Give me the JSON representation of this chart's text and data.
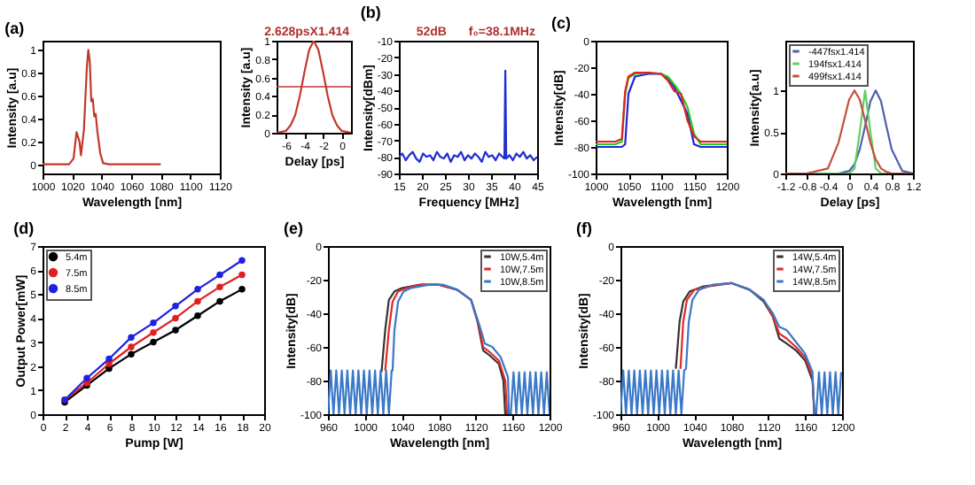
{
  "chart_data": [
    {
      "type": "line",
      "title": "(a)",
      "xlabel": "Wavelength [nm]",
      "ylabel": "Intensity [a.u]",
      "xlim": [
        1000,
        1120
      ],
      "xticks": [
        1000,
        1020,
        1040,
        1060,
        1080,
        1100,
        1120
      ],
      "ylim": [
        -0.08,
        1.08
      ],
      "yticks": [
        0,
        0.2,
        0.4,
        0.6,
        0.8,
        1
      ],
      "x": [
        1000,
        1018,
        1021,
        1023,
        1025,
        1026,
        1028,
        1030,
        1031,
        1032,
        1033,
        1034,
        1035,
        1036,
        1037,
        1039,
        1041,
        1045,
        1080
      ],
      "series": [
        {
          "color": "#c0392b",
          "values": [
            0,
            0,
            0.05,
            0.28,
            0.2,
            0.08,
            0.3,
            0.85,
            1,
            0.9,
            0.55,
            0.57,
            0.42,
            0.44,
            0.3,
            0.1,
            0.01,
            0,
            0
          ]
        }
      ]
    },
    {
      "type": "line",
      "xlabel": "Delay [ps]",
      "ylabel": "Intensity [a.u]",
      "xlim": [
        -7,
        1
      ],
      "xticks": [
        -6,
        -4,
        -2,
        0
      ],
      "ylim": [
        0,
        1
      ],
      "yticks": [
        0,
        0.2,
        0.4,
        0.6,
        0.8,
        1
      ],
      "annotations": [
        "2.628psX1.414"
      ],
      "ref_lines": [
        {
          "axis": "y",
          "value": 0.5,
          "color": "#c0392b"
        }
      ],
      "x": [
        -7,
        -6.5,
        -6,
        -5.5,
        -5,
        -4.5,
        -4,
        -3.5,
        -3,
        -2.5,
        -2,
        -1.5,
        -1,
        -0.5,
        0,
        1
      ],
      "series": [
        {
          "color": "#c0392b",
          "values": [
            0,
            0.01,
            0.02,
            0.08,
            0.19,
            0.4,
            0.66,
            0.9,
            1,
            0.9,
            0.66,
            0.4,
            0.19,
            0.08,
            0.02,
            0
          ]
        }
      ]
    },
    {
      "type": "line",
      "title": "(b)",
      "xlabel": "Frequency [MHz]",
      "ylabel": "Intensity[dBm]",
      "xlim": [
        15,
        45
      ],
      "xticks": [
        15,
        20,
        25,
        30,
        35,
        40,
        45
      ],
      "ylim": [
        -90,
        -10
      ],
      "yticks": [
        -90,
        -80,
        -70,
        -60,
        -50,
        -40,
        -30,
        -20,
        -10
      ],
      "annotations": [
        "f₀=38.1MHz",
        "52dB"
      ],
      "x": [
        15,
        15.75,
        16.5,
        17.25,
        18,
        18.75,
        19.5,
        20.25,
        21,
        21.75,
        22.5,
        23.25,
        24,
        24.75,
        25.5,
        26.25,
        27,
        27.75,
        28.5,
        29.25,
        30,
        30.75,
        31.5,
        32.25,
        33,
        33.75,
        34.5,
        35.25,
        36,
        36.75,
        37.5,
        37.9,
        38.1,
        38.3,
        39,
        39.75,
        40.5,
        41.25,
        42,
        42.75,
        43.5,
        44.25,
        45
      ],
      "series": [
        {
          "color": "#1f2fd0",
          "values": [
            -80,
            -78,
            -82,
            -79,
            -77,
            -81,
            -83,
            -78,
            -80,
            -79,
            -82,
            -77,
            -80,
            -81,
            -78,
            -83,
            -79,
            -80,
            -77,
            -82,
            -79,
            -81,
            -78,
            -80,
            -83,
            -77,
            -80,
            -79,
            -82,
            -78,
            -80,
            -81,
            -28,
            -81,
            -79,
            -82,
            -78,
            -80,
            -77,
            -81,
            -79,
            -82,
            -80
          ]
        }
      ]
    },
    {
      "type": "line",
      "title": "(c)",
      "xlabel": "Wavelength [nm]",
      "ylabel": "Intensity[dB]",
      "xlim": [
        1000,
        1200
      ],
      "xticks": [
        1000,
        1050,
        1100,
        1150,
        1200
      ],
      "ylim": [
        -100,
        0
      ],
      "yticks": [
        0,
        -20,
        -40,
        -60,
        -80,
        -100
      ],
      "x": [
        1000,
        1010,
        1020,
        1030,
        1040,
        1045,
        1050,
        1060,
        1080,
        1100,
        1110,
        1120,
        1130,
        1140,
        1150,
        1160,
        1170,
        1180,
        1190,
        1200
      ],
      "series": [
        {
          "color": "#2323d8",
          "values": [
            -80,
            -80,
            -80,
            -80,
            -80,
            -78,
            -40,
            -27,
            -25,
            -25,
            -28,
            -35,
            -45,
            -55,
            -78,
            -80,
            -80,
            -80,
            -80,
            -80
          ]
        },
        {
          "color": "#22cc22",
          "values": [
            -78,
            -78,
            -78,
            -78,
            -76,
            -40,
            -28,
            -25,
            -24,
            -25,
            -27,
            -33,
            -40,
            -50,
            -70,
            -78,
            -78,
            -78,
            -78,
            -78
          ]
        },
        {
          "color": "#e02020",
          "values": [
            -76,
            -76,
            -76,
            -76,
            -74,
            -38,
            -27,
            -24,
            -24,
            -25,
            -30,
            -38,
            -40,
            -60,
            -72,
            -76,
            -76,
            -76,
            -76,
            -76
          ]
        }
      ]
    },
    {
      "type": "line",
      "xlabel": "Delay [ps]",
      "ylabel": "Intensity[a.u]",
      "xlim": [
        -1.2,
        1.2
      ],
      "xticks": [
        -1.2,
        -0.8,
        -0.4,
        0,
        0.4,
        0.8,
        1.2
      ],
      "ylim": [
        0,
        1.6
      ],
      "yticks": [
        0,
        0.5,
        1
      ],
      "legend": "top left",
      "x": [
        -1.2,
        -0.8,
        -0.4,
        -0.2,
        0,
        0.1,
        0.2,
        0.3,
        0.4,
        0.5,
        0.6,
        0.7,
        0.8,
        1,
        1.2
      ],
      "series": [
        {
          "name": "-447fsx1.414",
          "color": "#5060b0",
          "values": [
            null,
            null,
            0,
            0,
            0.03,
            0.11,
            0.29,
            0.57,
            0.87,
            1,
            0.87,
            0.57,
            0.29,
            0.03,
            0
          ]
        },
        {
          "name": "194fsx1.414",
          "color": "#60d060",
          "values": [
            0,
            0,
            0,
            0,
            0,
            0.06,
            0.5,
            1,
            0.5,
            0.06,
            0,
            0,
            0,
            0,
            0
          ]
        },
        {
          "name": "499fsx1.414",
          "color": "#c05040",
          "values": [
            0,
            0,
            0.06,
            0.37,
            0.89,
            1,
            0.89,
            0.64,
            0.37,
            0.17,
            0.06,
            0.02,
            0,
            0,
            0
          ]
        }
      ]
    },
    {
      "type": "line",
      "title": "(d)",
      "xlabel": "Pump [W]",
      "ylabel": "Output Power[mW]",
      "xlim": [
        0,
        20
      ],
      "xticks": [
        0,
        2,
        4,
        6,
        8,
        10,
        12,
        14,
        16,
        18,
        20
      ],
      "ylim": [
        0,
        7
      ],
      "yticks": [
        0,
        1,
        2,
        3,
        4,
        5,
        6,
        7
      ],
      "legend": "top left",
      "marker": "circle",
      "x": [
        2,
        4,
        6,
        8,
        10,
        12,
        14,
        16,
        18
      ],
      "series": [
        {
          "name": "5.4m",
          "color": "#000000",
          "values": [
            0.5,
            1.2,
            1.9,
            2.5,
            3.0,
            3.5,
            4.1,
            4.7,
            5.2
          ]
        },
        {
          "name": "7.5m",
          "color": "#e02020",
          "values": [
            0.6,
            1.3,
            2.1,
            2.8,
            3.4,
            4.0,
            4.7,
            5.3,
            5.8
          ]
        },
        {
          "name": "8.5m",
          "color": "#2020e0",
          "values": [
            0.6,
            1.5,
            2.3,
            3.2,
            3.8,
            4.5,
            5.2,
            5.8,
            6.4
          ]
        }
      ]
    },
    {
      "type": "line",
      "title": "(e)",
      "xlabel": "Wavelength [nm]",
      "ylabel": "Intensity[dB]",
      "xlim": [
        960,
        1200
      ],
      "xticks": [
        960,
        1000,
        1040,
        1080,
        1120,
        1160,
        1200
      ],
      "ylim": [
        -100,
        0
      ],
      "yticks": [
        -100,
        -80,
        -60,
        -40,
        -20,
        0
      ],
      "legend": "top right",
      "series": [
        {
          "name": "10W,5.4m",
          "color": "#333333",
          "x": [
            1018,
            1022,
            1026,
            1032,
            1040,
            1060,
            1080,
            1100,
            1115,
            1122,
            1128,
            1135,
            1145,
            1150,
            1152
          ],
          "values": [
            -75,
            -50,
            -32,
            -27,
            -25,
            -23,
            -23,
            -26,
            -32,
            -45,
            -62,
            -65,
            -70,
            -80,
            -100
          ]
        },
        {
          "name": "10W,7.5m",
          "color": "#e02828",
          "x": [
            1022,
            1026,
            1030,
            1036,
            1045,
            1060,
            1080,
            1100,
            1115,
            1123,
            1128,
            1135,
            1145,
            1152,
            1154
          ],
          "values": [
            -74,
            -50,
            -33,
            -27,
            -25,
            -23,
            -23,
            -26,
            -32,
            -46,
            -60,
            -63,
            -68,
            -80,
            -100
          ]
        },
        {
          "name": "10W,8.5m",
          "color": "#3a78c8",
          "x": [
            960,
            963,
            966,
            969,
            972,
            975,
            978,
            981,
            984,
            987,
            990,
            993,
            996,
            999,
            1002,
            1005,
            1008,
            1011,
            1014,
            1017,
            1020,
            1023,
            1026,
            1029,
            1030,
            1032,
            1036,
            1042,
            1050,
            1070,
            1085,
            1100,
            1115,
            1124,
            1130,
            1138,
            1147,
            1155,
            1156,
            1158,
            1161,
            1164,
            1167,
            1170,
            1173,
            1176,
            1179,
            1182,
            1185,
            1188,
            1191,
            1194,
            1197,
            1200
          ],
          "values": [
            -100,
            -74,
            -100,
            -74,
            -100,
            -74,
            -100,
            -74,
            -100,
            -74,
            -100,
            -74,
            -100,
            -74,
            -100,
            -74,
            -100,
            -74,
            -100,
            -74,
            -100,
            -74,
            -100,
            -74,
            -74,
            -50,
            -33,
            -27,
            -25,
            -23,
            -23,
            -26,
            -32,
            -47,
            -58,
            -60,
            -66,
            -78,
            -100,
            -100,
            -75,
            -100,
            -75,
            -100,
            -75,
            -100,
            -75,
            -100,
            -75,
            -100,
            -75,
            -100,
            -75,
            -100
          ]
        }
      ]
    },
    {
      "type": "line",
      "title": "(f)",
      "xlabel": "Wavelength [nm]",
      "ylabel": "Intensity[dB]",
      "xlim": [
        960,
        1200
      ],
      "xticks": [
        960,
        1000,
        1040,
        1080,
        1120,
        1160,
        1200
      ],
      "ylim": [
        -100,
        0
      ],
      "yticks": [
        -100,
        -80,
        -60,
        -40,
        -20,
        0
      ],
      "legend": "top right",
      "series": [
        {
          "name": "14W,5.4m",
          "color": "#333333",
          "x": [
            1020,
            1024,
            1028,
            1035,
            1050,
            1080,
            1100,
            1115,
            1125,
            1132,
            1140,
            1150,
            1160,
            1168,
            1170
          ],
          "values": [
            -73,
            -45,
            -33,
            -27,
            -24,
            -22,
            -26,
            -33,
            -42,
            -55,
            -58,
            -62,
            -68,
            -80,
            -100
          ]
        },
        {
          "name": "14W,7.5m",
          "color": "#e02828",
          "x": [
            1025,
            1028,
            1032,
            1040,
            1055,
            1080,
            1100,
            1115,
            1125,
            1132,
            1140,
            1150,
            1160,
            1168,
            1170
          ],
          "values": [
            -73,
            -45,
            -32,
            -26,
            -24,
            -22,
            -26,
            -32,
            -42,
            -52,
            -55,
            -60,
            -66,
            -78,
            -100
          ]
        },
        {
          "name": "14W,8.5m",
          "color": "#3a78c8",
          "x": [
            960,
            963,
            966,
            969,
            972,
            975,
            978,
            981,
            984,
            987,
            990,
            993,
            996,
            999,
            1002,
            1005,
            1008,
            1011,
            1014,
            1017,
            1020,
            1023,
            1026,
            1029,
            1031,
            1034,
            1038,
            1045,
            1060,
            1080,
            1100,
            1115,
            1125,
            1132,
            1140,
            1150,
            1160,
            1168,
            1170,
            1172,
            1175,
            1178,
            1181,
            1184,
            1187,
            1190,
            1193,
            1196,
            1199
          ],
          "values": [
            -100,
            -74,
            -100,
            -74,
            -100,
            -74,
            -100,
            -74,
            -100,
            -74,
            -100,
            -74,
            -100,
            -74,
            -100,
            -74,
            -100,
            -74,
            -100,
            -74,
            -100,
            -74,
            -100,
            -74,
            -73,
            -45,
            -32,
            -26,
            -23,
            -22,
            -26,
            -32,
            -40,
            -48,
            -50,
            -57,
            -64,
            -75,
            -100,
            -100,
            -75,
            -100,
            -75,
            -100,
            -75,
            -100,
            -75,
            -100,
            -75
          ]
        }
      ]
    }
  ]
}
